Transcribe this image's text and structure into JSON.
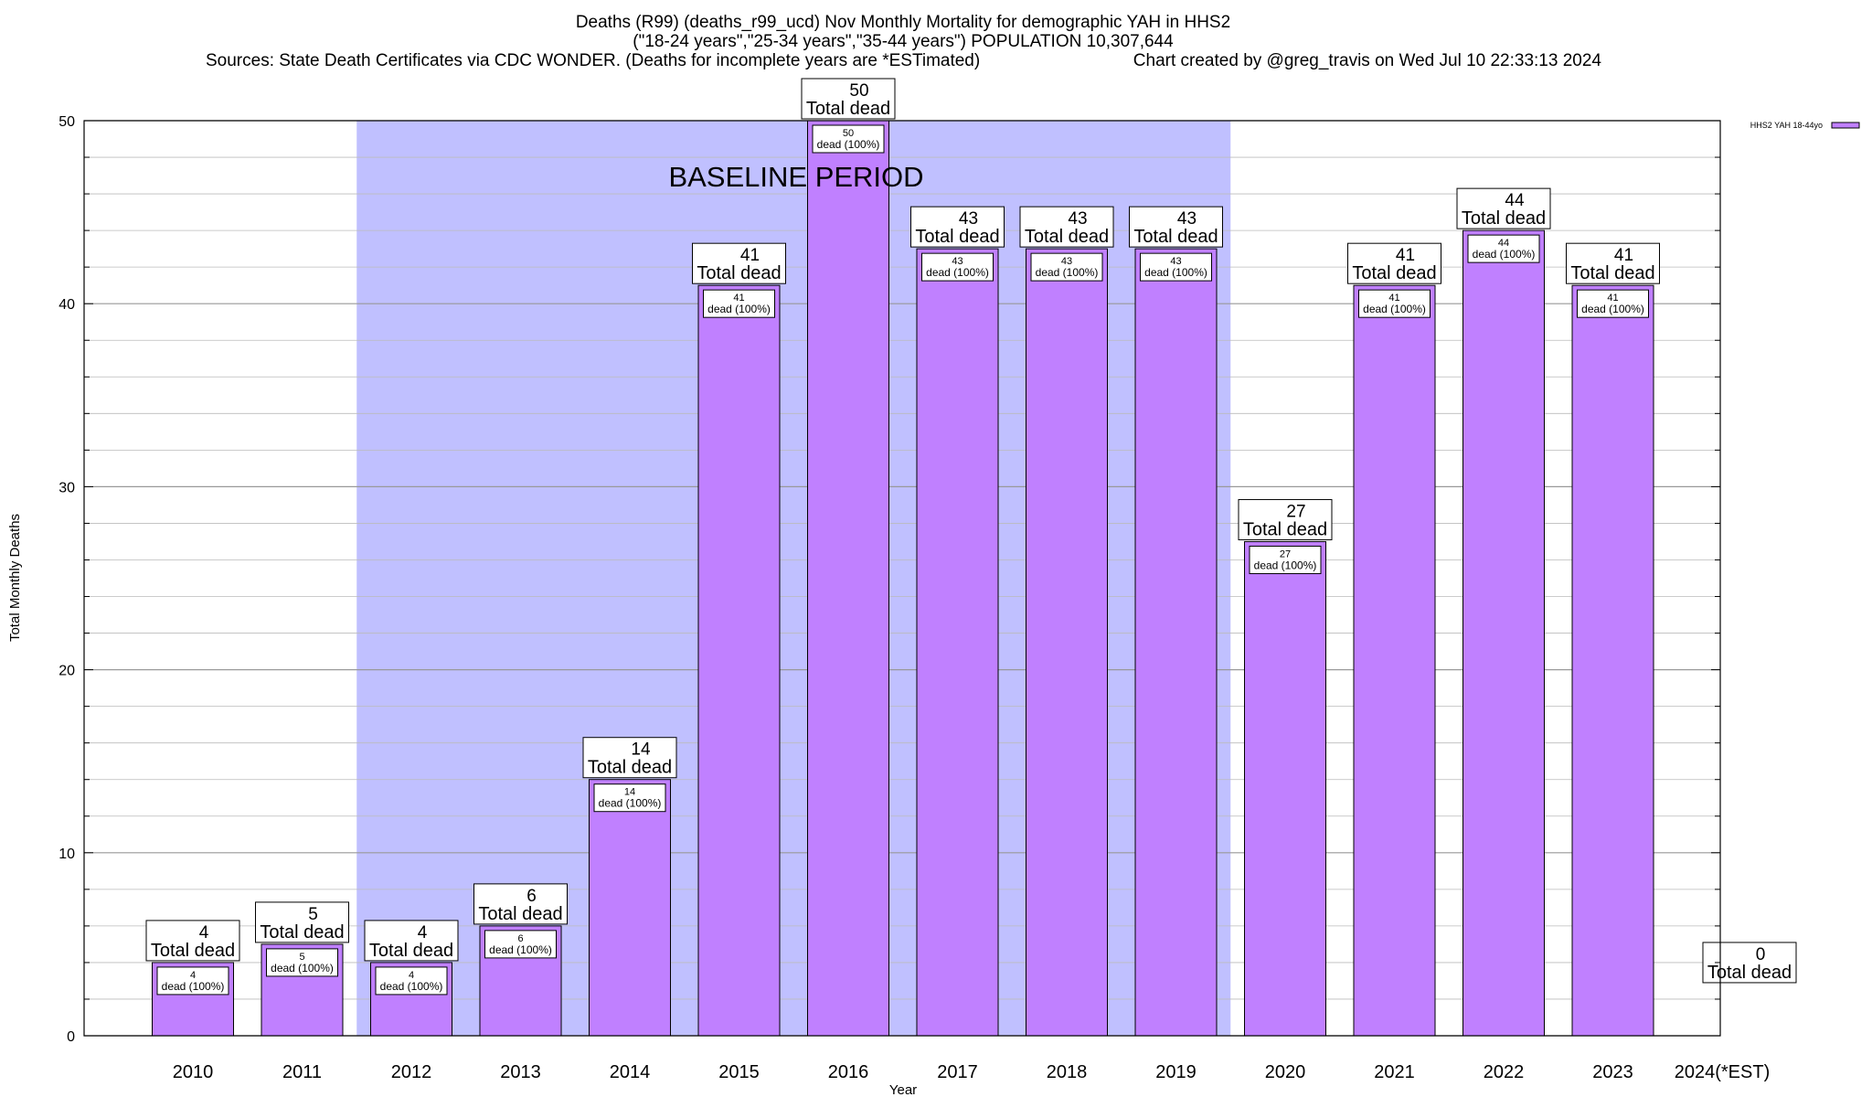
{
  "chart_data": {
    "type": "bar",
    "title_lines": [
      "Deaths (R99) (deaths_r99_ucd) Nov Monthly Mortality for demographic YAH in HHS2",
      "(\"18-24 years\",\"25-34 years\",\"35-44 years\") POPULATION 10,307,644",
      "Sources: State Death Certificates via CDC WONDER. (Deaths for incomplete years are *ESTimated)",
      "Chart created by @greg_travis on Wed Jul 10 22:33:13 2024"
    ],
    "xlabel": "Year",
    "ylabel": "Total Monthly Deaths",
    "ylim": [
      0,
      50
    ],
    "yticks": [
      0,
      10,
      20,
      30,
      40,
      50
    ],
    "categories": [
      "2010",
      "2011",
      "2012",
      "2013",
      "2014",
      "2015",
      "2016",
      "2017",
      "2018",
      "2019",
      "2020",
      "2021",
      "2022",
      "2023",
      "2024(*EST)"
    ],
    "series": [
      {
        "name": "HHS2 YAH 18-44yo",
        "color": "#c080ff",
        "values": [
          4,
          5,
          4,
          6,
          14,
          41,
          50,
          43,
          43,
          43,
          27,
          41,
          44,
          41,
          0
        ]
      }
    ],
    "top_label_suffix": "Total dead",
    "inner_labels": [
      "dead (100%)",
      "dead (100%)",
      "dead (100%)",
      "dead (100%)",
      "dead (100%)",
      "dead (100%)",
      "dead (100%)",
      "dead (100%)",
      "dead (100%)",
      "dead (100%)",
      "dead (100%)",
      "dead (100%)",
      "dead (100%)",
      "dead (100%)",
      ""
    ],
    "baseline": {
      "label": "BASELINE PERIOD",
      "start_category": "2012",
      "end_category": "2019",
      "color": "#c0c0ff"
    },
    "legend_position": "top-right",
    "grid": "horizontal"
  }
}
